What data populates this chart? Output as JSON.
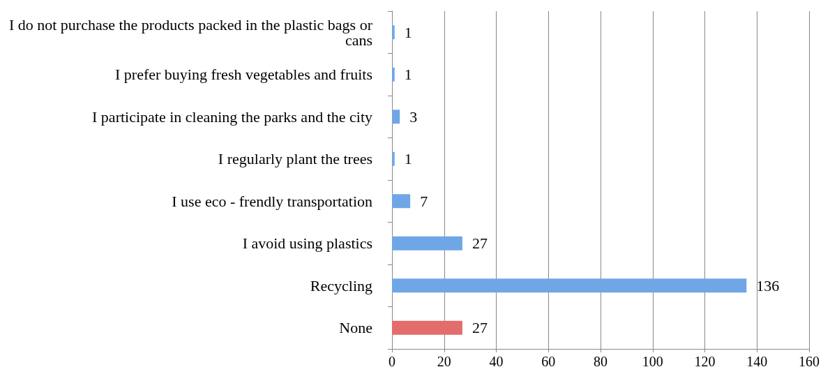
{
  "chart_data": {
    "type": "bar",
    "orientation": "horizontal",
    "categories": [
      "I do not purchase the products packed in the plastic bags or cans",
      "I prefer buying fresh vegetables and fruits",
      "I participate in cleaning the parks and the city",
      "I regularly plant the trees",
      "I use eco - frendly transportation",
      "I avoid using plastics",
      "Recycling",
      "None"
    ],
    "values": [
      1,
      1,
      3,
      1,
      7,
      27,
      136,
      27
    ],
    "colors": [
      "#6fa6e6",
      "#6fa6e6",
      "#6fa6e6",
      "#6fa6e6",
      "#6fa6e6",
      "#6fa6e6",
      "#6fa6e6",
      "#e36c6c"
    ],
    "xlim": [
      0,
      160
    ],
    "xticks": [
      0,
      20,
      40,
      60,
      80,
      100,
      120,
      140,
      160
    ],
    "grid": "x",
    "data_labels": true
  }
}
